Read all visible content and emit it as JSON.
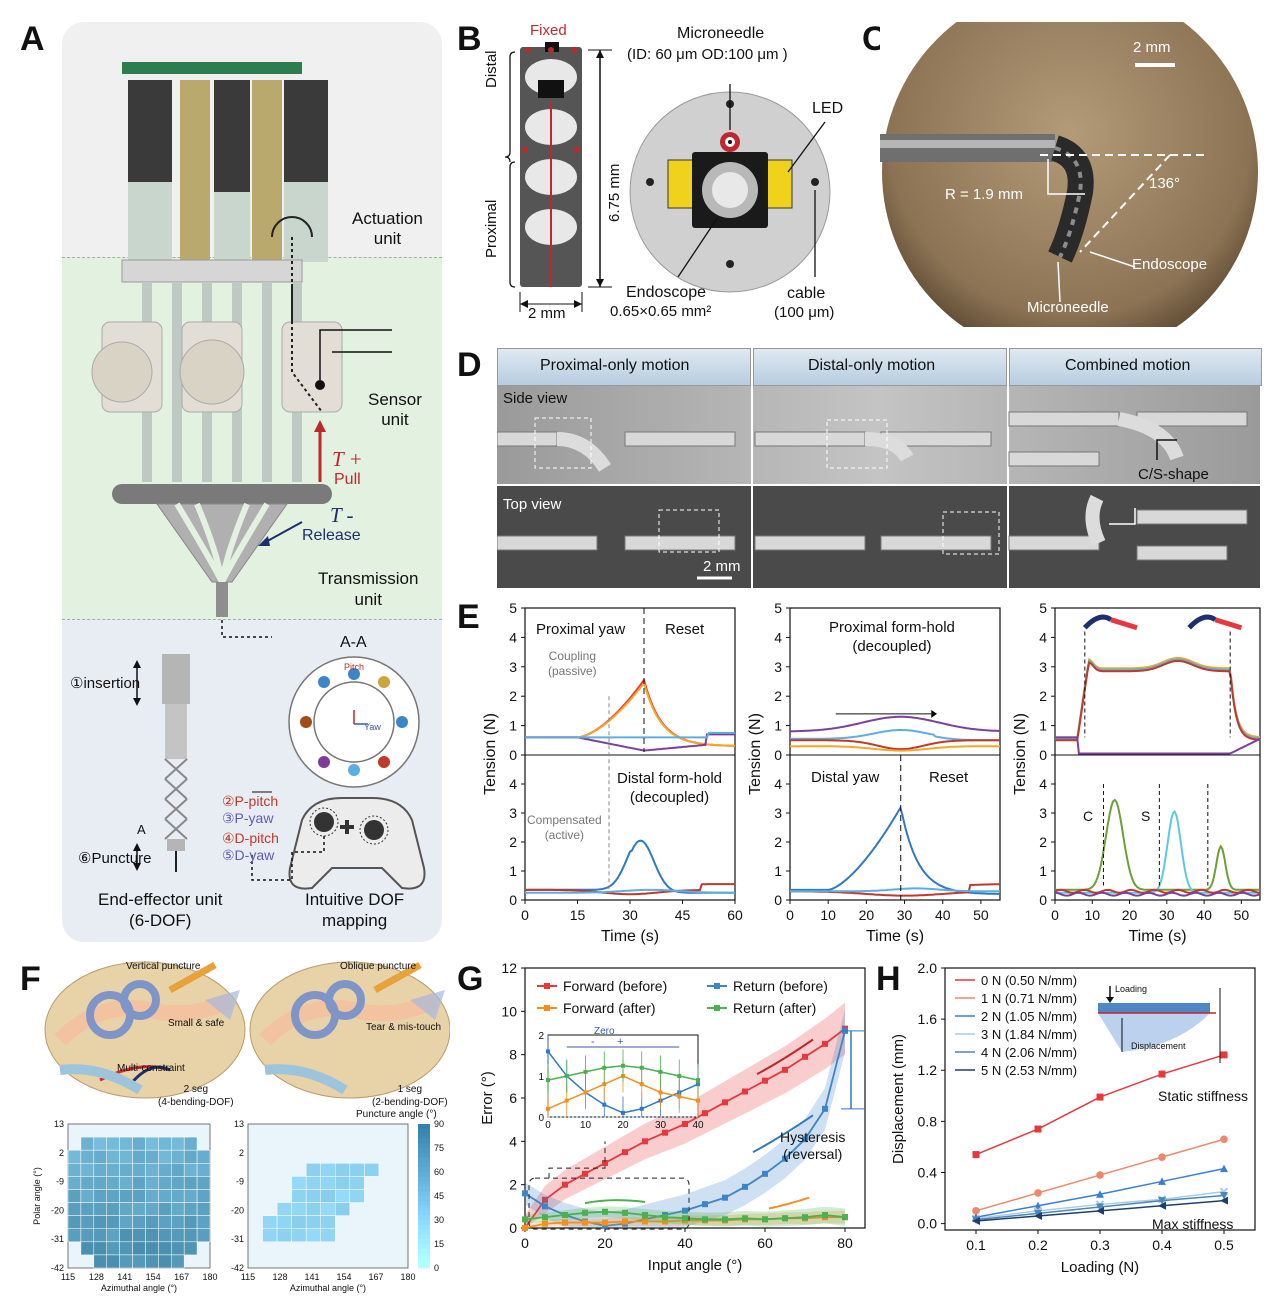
{
  "panels": {
    "A": {
      "label": "A",
      "actuation": "Actuation\nunit",
      "sensor": "Sensor\nunit",
      "tplus": "T +",
      "pull": "Pull",
      "tminus": "T -",
      "release": "Release",
      "transmission": "Transmission\nunit",
      "aa": "A-A",
      "pitch": "Pitch",
      "yaw": "Yaw",
      "insertion": "①insertion",
      "ppitch": "②P-pitch",
      "pyaw": "③P-yaw",
      "dpitch": "④D-pitch",
      "dyaw": "⑤D-yaw",
      "puncture": "⑥Puncture",
      "arrow_a": "A",
      "endeffector": "End-effector unit\n(6-DOF)",
      "mapping": "Intuitive DOF\nmapping"
    },
    "B": {
      "label": "B",
      "fixed": "Fixed",
      "distal": "Distal",
      "proximal": "Proximal",
      "length": "6.75 mm",
      "width": "2 mm",
      "microneedle": "Microneedle",
      "micro_dims": "(ID: 60 μm  OD:100 μm )",
      "led": "LED",
      "endoscope": "Endoscope",
      "endo_dims": "0.65×0.65 mm²",
      "cable": "cable",
      "cable_dims": "(100 μm)"
    },
    "C": {
      "label": "C",
      "scale": "2 mm",
      "radius": "R = 1.9 mm",
      "angle": "136°",
      "endoscope": "Endoscope",
      "microneedle": "Microneedle"
    },
    "D": {
      "label": "D",
      "headers": [
        "Proximal-only motion",
        "Distal-only motion",
        "Combined motion"
      ],
      "side": "Side view",
      "top": "Top view",
      "cs": "C/S-shape",
      "scale": "2 mm"
    },
    "E": {
      "label": "E",
      "ylabel": "Tension (N)",
      "xlabel": "Time (s)",
      "p1_top_a": "Proximal yaw",
      "p1_top_b": "Reset",
      "coupling": "Coupling\n(passive)",
      "p1_bot": "Distal form-hold\n(decoupled)",
      "compensated": "Compensated\n(active)",
      "p2_top": "Proximal form-hold\n(decoupled)",
      "p2_bot_a": "Distal yaw",
      "p2_bot_b": "Reset",
      "c": "C",
      "s": "S"
    },
    "F": {
      "label": "F",
      "vertical": "Vertical puncture",
      "oblique": "Oblique puncture",
      "small_safe": "Small & safe",
      "tear": "Tear & mis-touch",
      "multi": "Multi-constraint",
      "seg2": "2 seg\n(4-bending-DOF)",
      "seg1": "1 seg\n(2-bending-DOF)",
      "cbar_title": "Puncture angle (°)",
      "ylabel": "Polar angle (°)",
      "xlabel": "Azimuthal angle (°)"
    },
    "G": {
      "label": "G",
      "hysteresis": "Hysteresis\n(reversal)",
      "zero": "Zero",
      "minus": "-",
      "plus": "+"
    },
    "H": {
      "label": "H",
      "loading": "Loading",
      "displacement": "Displacement",
      "static": "Static stiffness",
      "max": "Max stiffness"
    }
  },
  "chart_data": [
    {
      "id": "E1",
      "type": "line",
      "xlabel": "Time (s)",
      "ylabel": "Tension (N)",
      "xlim": [
        0,
        60
      ],
      "xticks": [
        0,
        15,
        30,
        45,
        60
      ],
      "top": {
        "ylim": [
          0,
          5
        ],
        "yticks": [
          0,
          1,
          2,
          3,
          4,
          5
        ]
      },
      "bottom": {
        "ylim": [
          0,
          5
        ],
        "yticks": [
          0,
          1,
          2,
          3,
          4
        ]
      }
    },
    {
      "id": "E2",
      "type": "line",
      "xlabel": "Time (s)",
      "ylabel": "Tension (N)",
      "xlim": [
        0,
        55
      ],
      "xticks": [
        0,
        10,
        20,
        30,
        40,
        50
      ],
      "top": {
        "ylim": [
          0,
          5
        ],
        "yticks": [
          0,
          1,
          2,
          3,
          4,
          5
        ]
      },
      "bottom": {
        "ylim": [
          0,
          5
        ],
        "yticks": [
          0,
          1,
          2,
          3,
          4
        ]
      }
    },
    {
      "id": "E3",
      "type": "line",
      "xlabel": "Time (s)",
      "ylabel": "Tension (N)",
      "xlim": [
        0,
        55
      ],
      "xticks": [
        0,
        10,
        20,
        30,
        40,
        50
      ],
      "top": {
        "ylim": [
          0,
          5
        ],
        "yticks": [
          0,
          1,
          2,
          3,
          4,
          5
        ]
      },
      "bottom": {
        "ylim": [
          0,
          5
        ],
        "yticks": [
          0,
          1,
          2,
          3,
          4
        ]
      }
    },
    {
      "id": "G",
      "type": "line",
      "xlabel": "Input angle (°)",
      "ylabel": "Error (°)",
      "xlim": [
        0,
        85
      ],
      "ylim": [
        0,
        12
      ],
      "xticks": [
        0,
        20,
        40,
        60,
        80
      ],
      "yticks": [
        0,
        2,
        4,
        6,
        8,
        10,
        12
      ],
      "x": [
        0,
        5,
        10,
        15,
        20,
        25,
        30,
        35,
        40,
        45,
        50,
        55,
        60,
        65,
        70,
        75,
        80
      ],
      "series": [
        {
          "name": "Forward (before)",
          "color": "#e8383d",
          "values": [
            0,
            1.3,
            2.0,
            2.5,
            3.0,
            3.5,
            4.0,
            4.4,
            4.8,
            5.3,
            5.8,
            6.3,
            6.8,
            7.3,
            7.9,
            8.5,
            9.2
          ]
        },
        {
          "name": "Return (before)",
          "color": "#3d85c6",
          "values": [
            1.6,
            1.0,
            0.6,
            0.3,
            0.1,
            0.2,
            0.4,
            0.6,
            0.8,
            1.1,
            1.4,
            1.9,
            2.5,
            3.2,
            4.1,
            5.5,
            9.1
          ]
        },
        {
          "name": "Forward (after)",
          "color": "#f5901e",
          "values": [
            0,
            0.2,
            0.25,
            0.25,
            0.25,
            0.3,
            0.3,
            0.3,
            0.35,
            0.35,
            0.35,
            0.4,
            0.4,
            0.45,
            0.45,
            0.5,
            0.5
          ]
        },
        {
          "name": "Return (after)",
          "color": "#4caf50",
          "values": [
            0.4,
            0.5,
            0.6,
            0.7,
            0.75,
            0.7,
            0.6,
            0.5,
            0.45,
            0.4,
            0.4,
            0.45,
            0.4,
            0.45,
            0.5,
            0.6,
            0.5
          ]
        }
      ],
      "inset": {
        "xlim": [
          0,
          40
        ],
        "ylim": [
          0,
          2
        ],
        "xticks": [
          0,
          10,
          20,
          30,
          40
        ],
        "yticks": [
          0,
          1,
          2
        ]
      }
    },
    {
      "id": "H",
      "type": "scatter",
      "xlabel": "Loading (N)",
      "ylabel": "Displacement (mm)",
      "xlim": [
        0.05,
        0.55
      ],
      "ylim": [
        -0.05,
        2.0
      ],
      "xticks": [
        0.1,
        0.2,
        0.3,
        0.4,
        0.5
      ],
      "yticks": [
        0.0,
        0.4,
        0.8,
        1.2,
        1.6,
        2.0
      ],
      "x": [
        0.1,
        0.2,
        0.3,
        0.4,
        0.5
      ],
      "series": [
        {
          "name": "0 N (0.50 N/mm)",
          "color": "#e8383d",
          "values": [
            0.54,
            0.74,
            0.99,
            1.17,
            1.32
          ]
        },
        {
          "name": "1 N (0.71 N/mm)",
          "color": "#f0876a",
          "values": [
            0.1,
            0.24,
            0.38,
            0.52,
            0.66
          ]
        },
        {
          "name": "2 N (1.05 N/mm)",
          "color": "#3a7fd4",
          "values": [
            0.05,
            0.14,
            0.23,
            0.33,
            0.43
          ]
        },
        {
          "name": "3 N (1.84 N/mm)",
          "color": "#a9cce8",
          "values": [
            0.04,
            0.1,
            0.15,
            0.19,
            0.25
          ]
        },
        {
          "name": "4 N (2.06 N/mm)",
          "color": "#4b86b8",
          "values": [
            0.03,
            0.08,
            0.13,
            0.18,
            0.22
          ]
        },
        {
          "name": "5 N (2.53 N/mm)",
          "color": "#1f3e6e",
          "values": [
            0.02,
            0.06,
            0.1,
            0.14,
            0.18
          ]
        }
      ]
    },
    {
      "id": "F1",
      "type": "heatmap",
      "xlabel": "Azimuthal angle (°)",
      "ylabel": "Polar angle (°)",
      "xticks": [
        "115",
        "128",
        "141",
        "154",
        "167",
        "180"
      ],
      "yticks": [
        "13",
        "2",
        "-9",
        "-20",
        "-31",
        "-42"
      ]
    },
    {
      "id": "F2",
      "type": "heatmap",
      "xlabel": "Azimuthal angle (°)",
      "xticks": [
        "115",
        "128",
        "141",
        "154",
        "167",
        "180"
      ],
      "yticks": [
        "13",
        "2",
        "-9",
        "-20",
        "-31",
        "-42"
      ],
      "colorbar": {
        "title": "Puncture angle (°)",
        "ticks": [
          "90",
          "75",
          "60",
          "45",
          "30",
          "15",
          "0"
        ]
      }
    }
  ]
}
